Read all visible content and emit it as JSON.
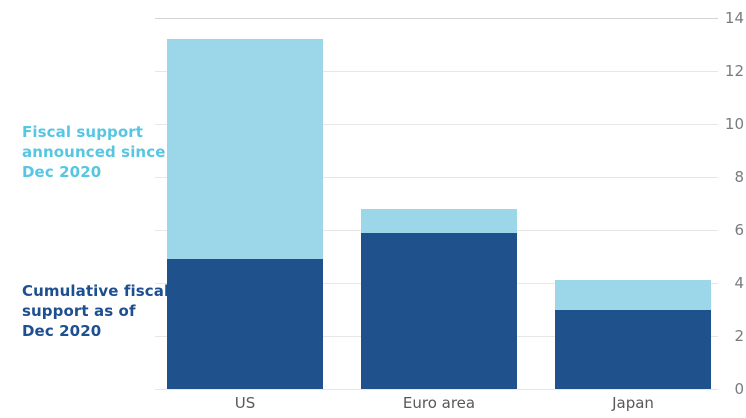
{
  "annotations": {
    "announced_label": "Fiscal support\nannounced since\nDec 2020",
    "cumulative_label": "Cumulative fiscal\nsupport as of\nDec 2020"
  },
  "colors": {
    "announced_series": "#9bd7e9",
    "cumulative_series": "#1f528c",
    "announced_label_text": "#57c6e2",
    "cumulative_label_text": "#1d4f91",
    "gridline": "#e9e7e3",
    "top_gridline": "#d4d4d4",
    "tick_text": "#7a7b7d",
    "category_text": "#59595b"
  },
  "chart_data": {
    "type": "bar",
    "stacked": true,
    "title": "",
    "xlabel": "",
    "ylabel": "",
    "categories": [
      "US",
      "Euro area",
      "Japan"
    ],
    "series": [
      {
        "name": "Cumulative fiscal support as of Dec 2020",
        "color": "#1f528c",
        "values": [
          4.9,
          5.9,
          3.0
        ]
      },
      {
        "name": "Fiscal support announced since Dec 2020",
        "color": "#9bd7e9",
        "values": [
          8.3,
          0.9,
          1.1
        ]
      }
    ],
    "totals": [
      13.2,
      6.8,
      4.1
    ],
    "ylim": [
      0,
      14
    ],
    "y_ticks": [
      0,
      2,
      4,
      6,
      8,
      10,
      12,
      14
    ],
    "y_axis_side": "right",
    "grid": true,
    "legend_position": "left-annotations"
  }
}
